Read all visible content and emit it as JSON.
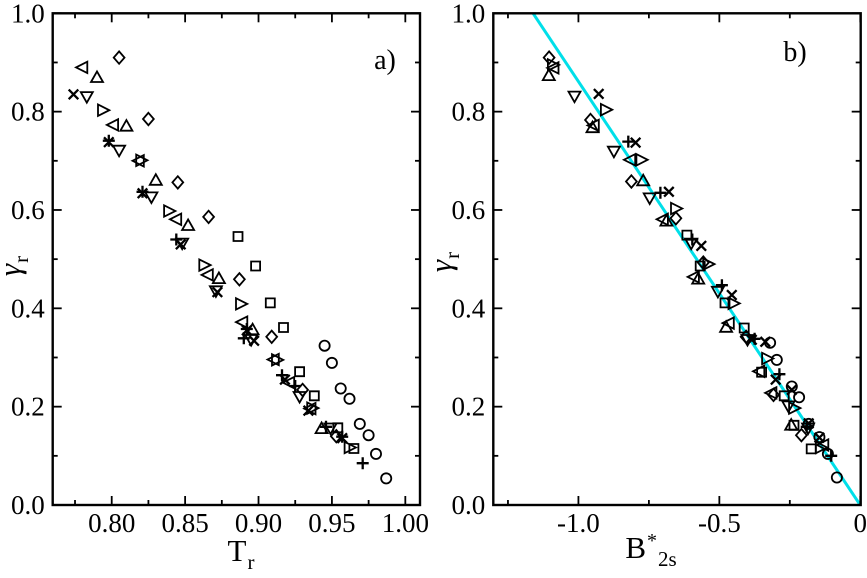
{
  "figure": {
    "background": "#ffffff",
    "axis_color": "#000000",
    "marker_color": "#000000",
    "fit_line_color": "#00dfe9"
  },
  "chart_data": [
    {
      "type": "scatter",
      "panel_label": "a)",
      "xlabel_main": "T",
      "xlabel_sup": "",
      "xlabel_sub": "r",
      "ylabel_main": "γ",
      "ylabel_sub": "r",
      "xlim": [
        0.7598,
        1.01
      ],
      "ylim": [
        0.0,
        1.0
      ],
      "x_major_ticks": [
        0.8,
        0.85,
        0.9,
        0.95,
        1.0
      ],
      "x_tick_labels": [
        "0.80",
        "0.85",
        "0.90",
        "0.95",
        "1.00"
      ],
      "x_minor_ticks": [
        0.775,
        0.825,
        0.875,
        0.925,
        0.975
      ],
      "y_major_ticks": [
        0.0,
        0.2,
        0.4,
        0.6,
        0.8,
        1.0
      ],
      "y_tick_labels": [
        "0.0",
        "0.2",
        "0.4",
        "0.6",
        "0.8",
        "1.0"
      ],
      "y_minor_ticks": [
        0.1,
        0.3,
        0.5,
        0.7,
        0.9
      ],
      "grid": false,
      "legend": "none",
      "series": [
        {
          "name": "cross",
          "marker": "cross",
          "points": [
            [
              0.774,
              0.835
            ],
            [
              0.798,
              0.738
            ],
            [
              0.821,
              0.634
            ],
            [
              0.847,
              0.53
            ],
            [
              0.872,
              0.433
            ],
            [
              0.892,
              0.355
            ],
            [
              0.897,
              0.334
            ],
            [
              0.918,
              0.255
            ],
            [
              0.934,
              0.192
            ],
            [
              0.957,
              0.136
            ]
          ]
        },
        {
          "name": "plus",
          "marker": "plus",
          "points": [
            [
              0.798,
              0.741
            ],
            [
              0.821,
              0.637
            ],
            [
              0.844,
              0.54
            ],
            [
              0.89,
              0.339
            ],
            [
              0.892,
              0.358
            ],
            [
              0.916,
              0.264
            ],
            [
              0.925,
              0.242
            ],
            [
              0.946,
              0.159
            ],
            [
              0.957,
              0.139
            ],
            [
              0.971,
              0.085
            ]
          ]
        },
        {
          "name": "triangle-left",
          "marker": "triangle-left",
          "points": [
            [
              0.78,
              0.89
            ],
            [
              0.801,
              0.773
            ],
            [
              0.8185,
              0.7
            ],
            [
              0.844,
              0.581
            ],
            [
              0.8655,
              0.468
            ],
            [
              0.889,
              0.372
            ],
            [
              0.9105,
              0.296
            ],
            [
              0.921,
              0.249
            ],
            [
              0.9355,
              0.196
            ]
          ]
        },
        {
          "name": "triangle-right",
          "marker": "triangle-right",
          "points": [
            [
              0.794,
              0.803
            ],
            [
              0.82,
              0.701
            ],
            [
              0.839,
              0.598
            ],
            [
              0.863,
              0.488
            ],
            [
              0.888,
              0.409
            ],
            [
              0.9125,
              0.295
            ],
            [
              0.9365,
              0.197
            ],
            [
              0.962,
              0.117
            ]
          ]
        },
        {
          "name": "triangle-up",
          "marker": "triangle-up",
          "points": [
            [
              0.79,
              0.87
            ],
            [
              0.81,
              0.771
            ],
            [
              0.83,
              0.661
            ],
            [
              0.852,
              0.569
            ],
            [
              0.873,
              0.461
            ],
            [
              0.896,
              0.357
            ],
            [
              0.943,
              0.156
            ]
          ]
        },
        {
          "name": "triangle-down",
          "marker": "triangle-down",
          "points": [
            [
              0.783,
              0.83
            ],
            [
              0.805,
              0.721
            ],
            [
              0.827,
              0.626
            ],
            [
              0.848,
              0.532
            ],
            [
              0.871,
              0.435
            ],
            [
              0.895,
              0.336
            ],
            [
              0.928,
              0.22
            ],
            [
              0.949,
              0.156
            ]
          ]
        },
        {
          "name": "diamond",
          "marker": "diamond",
          "points": [
            [
              0.805,
              0.91
            ],
            [
              0.825,
              0.785
            ],
            [
              0.845,
              0.656
            ],
            [
              0.866,
              0.586
            ],
            [
              0.887,
              0.459
            ],
            [
              0.909,
              0.342
            ],
            [
              0.93,
              0.234
            ],
            [
              0.953,
              0.14
            ]
          ]
        },
        {
          "name": "square",
          "marker": "square",
          "points": [
            [
              0.886,
              0.546
            ],
            [
              0.898,
              0.486
            ],
            [
              0.908,
              0.411
            ],
            [
              0.917,
              0.361
            ],
            [
              0.928,
              0.271
            ],
            [
              0.938,
              0.222
            ],
            [
              0.954,
              0.157
            ],
            [
              0.965,
              0.115
            ]
          ]
        },
        {
          "name": "circle",
          "marker": "circle",
          "points": [
            [
              0.945,
              0.324
            ],
            [
              0.95,
              0.289
            ],
            [
              0.956,
              0.237
            ],
            [
              0.962,
              0.216
            ],
            [
              0.969,
              0.165
            ],
            [
              0.975,
              0.142
            ],
            [
              0.98,
              0.104
            ],
            [
              0.987,
              0.054
            ]
          ]
        }
      ]
    },
    {
      "type": "scatter",
      "panel_label": "b)",
      "xlabel_main": "B",
      "xlabel_sup": "*",
      "xlabel_sub": "2s",
      "ylabel_main": "γ",
      "ylabel_sub": "r",
      "xlim": [
        -1.302,
        0.0015
      ],
      "ylim": [
        0.0,
        1.0
      ],
      "x_major_ticks": [
        -1.0,
        -0.5,
        0
      ],
      "x_tick_labels": [
        "-1.0",
        "-0.5",
        "0"
      ],
      "x_minor_ticks": [
        -1.25,
        -0.75,
        -0.25
      ],
      "y_major_ticks": [
        0.0,
        0.2,
        0.4,
        0.6,
        0.8,
        1.0
      ],
      "y_tick_labels": [
        "0.0",
        "0.2",
        "0.4",
        "0.6",
        "0.8",
        "1.0"
      ],
      "y_minor_ticks": [
        0.1,
        0.3,
        0.5,
        0.7,
        0.9
      ],
      "grid": false,
      "legend": "none",
      "fit_line": {
        "x1": -1.161,
        "y1": 1.0,
        "x2": 0.002,
        "y2": -0.002
      },
      "series": [
        {
          "name": "cross",
          "marker": "cross",
          "points": [
            [
              -0.928,
              0.836
            ],
            [
              -0.797,
              0.737
            ],
            [
              -0.679,
              0.637
            ],
            [
              -0.564,
              0.527
            ],
            [
              -0.456,
              0.427
            ],
            [
              -0.385,
              0.336
            ],
            [
              -0.337,
              0.332
            ],
            [
              -0.3,
              0.255
            ],
            [
              -0.243,
              0.234
            ],
            [
              -0.183,
              0.166
            ],
            [
              -0.145,
              0.137
            ]
          ]
        },
        {
          "name": "plus",
          "marker": "plus",
          "points": [
            [
              -0.823,
              0.739
            ],
            [
              -0.709,
              0.635
            ],
            [
              -0.596,
              0.54
            ],
            [
              -0.491,
              0.447
            ],
            [
              -0.375,
              0.338
            ],
            [
              -0.287,
              0.266
            ],
            [
              -0.19,
              0.159
            ],
            [
              -0.103,
              0.1
            ]
          ]
        },
        {
          "name": "triangle-left",
          "marker": "triangle-left",
          "points": [
            [
              -1.088,
              0.889
            ],
            [
              -0.945,
              0.772
            ],
            [
              -0.816,
              0.702
            ],
            [
              -0.7,
              0.581
            ],
            [
              -0.59,
              0.464
            ],
            [
              -0.466,
              0.37
            ],
            [
              -0.358,
              0.272
            ],
            [
              -0.315,
              0.228
            ],
            [
              -0.131,
              0.122
            ]
          ]
        },
        {
          "name": "triangle-right",
          "marker": "triangle-right",
          "points": [
            [
              -1.091,
              0.895
            ],
            [
              -0.903,
              0.804
            ],
            [
              -0.777,
              0.702
            ],
            [
              -0.654,
              0.603
            ],
            [
              -0.54,
              0.49
            ],
            [
              -0.45,
              0.41
            ],
            [
              -0.331,
              0.298
            ],
            [
              -0.235,
              0.197
            ],
            [
              -0.14,
              0.117
            ]
          ]
        },
        {
          "name": "triangle-up",
          "marker": "triangle-up",
          "points": [
            [
              -1.105,
              0.874
            ],
            [
              -0.95,
              0.768
            ],
            [
              -0.77,
              0.66
            ],
            [
              -0.688,
              0.578
            ],
            [
              -0.575,
              0.46
            ],
            [
              -0.476,
              0.362
            ],
            [
              -0.245,
              0.163
            ]
          ]
        },
        {
          "name": "triangle-down",
          "marker": "triangle-down",
          "points": [
            [
              -1.014,
              0.831
            ],
            [
              -0.874,
              0.719
            ],
            [
              -0.747,
              0.624
            ],
            [
              -0.6,
              0.532
            ],
            [
              -0.505,
              0.434
            ],
            [
              -0.4,
              0.336
            ],
            [
              -0.255,
              0.201
            ],
            [
              -0.185,
              0.156
            ]
          ]
        },
        {
          "name": "diamond",
          "marker": "diamond",
          "points": [
            [
              -1.104,
              0.91
            ],
            [
              -0.957,
              0.783
            ],
            [
              -0.812,
              0.658
            ],
            [
              -0.654,
              0.583
            ],
            [
              -0.557,
              0.493
            ],
            [
              -0.405,
              0.342
            ],
            [
              -0.308,
              0.224
            ],
            [
              -0.209,
              0.142
            ]
          ]
        },
        {
          "name": "square",
          "marker": "square",
          "points": [
            [
              -0.615,
              0.549
            ],
            [
              -0.568,
              0.486
            ],
            [
              -0.48,
              0.411
            ],
            [
              -0.412,
              0.36
            ],
            [
              -0.35,
              0.27
            ],
            [
              -0.27,
              0.222
            ],
            [
              -0.235,
              0.162
            ],
            [
              -0.174,
              0.114
            ]
          ]
        },
        {
          "name": "circle",
          "marker": "circle",
          "points": [
            [
              -0.32,
              0.33
            ],
            [
              -0.296,
              0.295
            ],
            [
              -0.243,
              0.241
            ],
            [
              -0.217,
              0.219
            ],
            [
              -0.183,
              0.165
            ],
            [
              -0.145,
              0.138
            ],
            [
              -0.115,
              0.104
            ],
            [
              -0.083,
              0.056
            ]
          ]
        }
      ]
    }
  ]
}
